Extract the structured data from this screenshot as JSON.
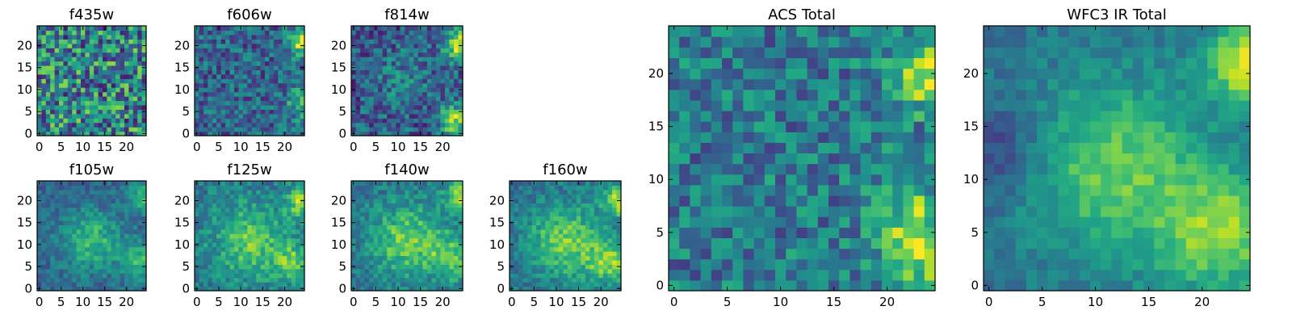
{
  "chart_data": [
    {
      "type": "heatmap",
      "title": "f435w",
      "grid_size": 25,
      "xlim": [
        0,
        24
      ],
      "ylim": [
        0,
        24
      ],
      "xticks": [
        0,
        5,
        10,
        15,
        20
      ],
      "yticks": [
        0,
        5,
        10,
        15,
        20
      ],
      "pattern": "noise",
      "colormap": "viridis"
    },
    {
      "type": "heatmap",
      "title": "f606w",
      "grid_size": 25,
      "xlim": [
        0,
        24
      ],
      "ylim": [
        0,
        24
      ],
      "xticks": [
        0,
        5,
        10,
        15,
        20
      ],
      "yticks": [
        0,
        5,
        10,
        15,
        20
      ],
      "pattern": "noise with bright top-right corner",
      "colormap": "viridis"
    },
    {
      "type": "heatmap",
      "title": "f814w",
      "grid_size": 25,
      "xlim": [
        0,
        24
      ],
      "ylim": [
        0,
        24
      ],
      "xticks": [
        0,
        5,
        10,
        15,
        20
      ],
      "yticks": [
        0,
        5,
        10,
        15,
        20
      ],
      "pattern": "noise with bright right edge",
      "colormap": "viridis"
    },
    {
      "type": "heatmap",
      "title": "f105w",
      "grid_size": 25,
      "xlim": [
        0,
        24
      ],
      "ylim": [
        0,
        24
      ],
      "xticks": [
        0,
        5,
        10,
        15,
        20
      ],
      "yticks": [
        0,
        5,
        10,
        15,
        20
      ],
      "pattern": "smooth with central bright blob",
      "colormap": "viridis"
    },
    {
      "type": "heatmap",
      "title": "f125w",
      "grid_size": 25,
      "xlim": [
        0,
        24
      ],
      "ylim": [
        0,
        24
      ],
      "xticks": [
        0,
        5,
        10,
        15,
        20
      ],
      "yticks": [
        0,
        5,
        10,
        15,
        20
      ],
      "pattern": "smooth with central bright blob",
      "colormap": "viridis"
    },
    {
      "type": "heatmap",
      "title": "f140w",
      "grid_size": 25,
      "xlim": [
        0,
        24
      ],
      "ylim": [
        0,
        24
      ],
      "xticks": [
        0,
        5,
        10,
        15,
        20
      ],
      "yticks": [
        0,
        5,
        10,
        15,
        20
      ],
      "pattern": "smooth with central bright blob",
      "colormap": "viridis"
    },
    {
      "type": "heatmap",
      "title": "f160w",
      "grid_size": 25,
      "xlim": [
        0,
        24
      ],
      "ylim": [
        0,
        24
      ],
      "xticks": [
        0,
        5,
        10,
        15,
        20
      ],
      "yticks": [
        0,
        5,
        10,
        15,
        20
      ],
      "pattern": "smooth with central bright blob",
      "colormap": "viridis"
    },
    {
      "type": "heatmap",
      "title": "ACS Total",
      "grid_size": 25,
      "xlim": [
        0,
        24
      ],
      "ylim": [
        0,
        24
      ],
      "xticks": [
        0,
        5,
        10,
        15,
        20
      ],
      "yticks": [
        0,
        5,
        10,
        15,
        20
      ],
      "pattern": "noise with bright top-right and bottom-right",
      "colormap": "viridis"
    },
    {
      "type": "heatmap",
      "title": "WFC3 IR Total",
      "grid_size": 25,
      "xlim": [
        0,
        24
      ],
      "ylim": [
        0,
        24
      ],
      "xticks": [
        0,
        5,
        10,
        15,
        20
      ],
      "yticks": [
        0,
        5,
        10,
        15,
        20
      ],
      "pattern": "smooth with central and bottom-right bright regions",
      "colormap": "viridis"
    }
  ],
  "colors": {
    "viridis": [
      "#440154",
      "#482475",
      "#414487",
      "#355f8d",
      "#2a788e",
      "#21918c",
      "#22a884",
      "#44bf70",
      "#7ad151",
      "#bddf26",
      "#fde725"
    ]
  }
}
